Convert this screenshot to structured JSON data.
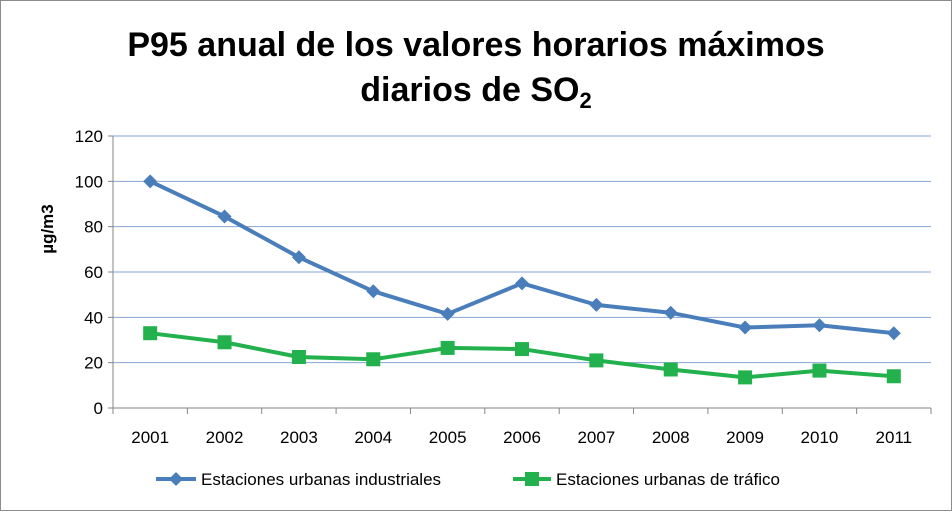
{
  "chart_data": {
    "type": "line",
    "title_line1": "P95 anual de los valores horarios máximos",
    "title_line2_main": "diarios de SO",
    "title_line2_subscript": "2",
    "ylabel": "µg/m3",
    "xlabel": "",
    "ylim": [
      0,
      120
    ],
    "yticks": [
      0,
      20,
      40,
      60,
      80,
      100,
      120
    ],
    "grid": true,
    "legend_position": "bottom",
    "categories": [
      "2001",
      "2002",
      "2003",
      "2004",
      "2005",
      "2006",
      "2007",
      "2008",
      "2009",
      "2010",
      "2011"
    ],
    "series": [
      {
        "name": "Estaciones urbanas industriales",
        "color": "#4a7ebb",
        "marker": "diamond",
        "values": [
          100,
          84.5,
          66.5,
          51.5,
          41.5,
          55,
          45.5,
          42,
          35.5,
          36.5,
          33
        ]
      },
      {
        "name": "Estaciones urbanas de tráfico",
        "color": "#22b14c",
        "marker": "square",
        "values": [
          33,
          29,
          22.5,
          21.5,
          26.5,
          26,
          21,
          17,
          13.5,
          16.5,
          14
        ]
      }
    ]
  }
}
